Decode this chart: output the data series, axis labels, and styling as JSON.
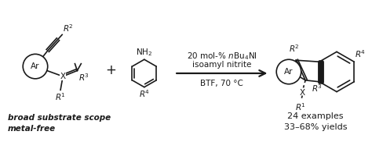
{
  "bg_color": "#ffffff",
  "line_color": "#1a1a1a",
  "text_color": "#1a1a1a",
  "arrow_condition_line1": "20 mol-% $n$Bu$_4$NI",
  "arrow_condition_line2": "isoamyl nitrite",
  "arrow_condition_line3": "BTF, 70 °C",
  "bottom_text_line1": "broad substrate scope",
  "bottom_text_line2": "metal-free",
  "product_text_line1": "24 examples",
  "product_text_line2": "33–68% yields",
  "figsize": [
    4.74,
    1.82
  ],
  "dpi": 100
}
